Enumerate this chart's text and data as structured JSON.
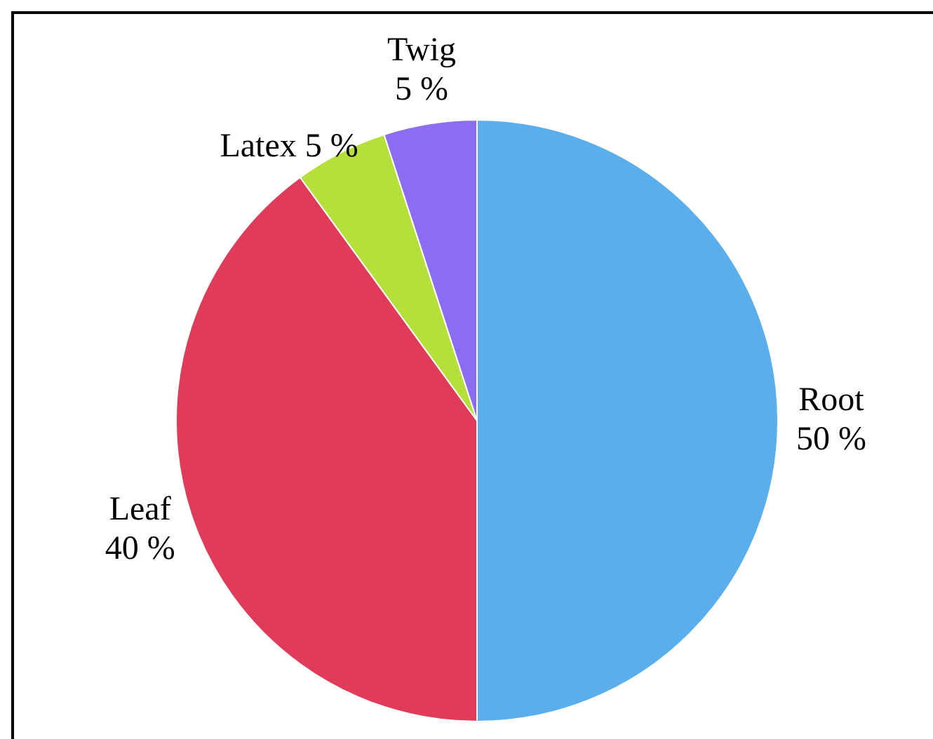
{
  "chart_data": {
    "type": "pie",
    "categories": [
      "Root",
      "Leaf",
      "Latex",
      "Twig"
    ],
    "values": [
      50,
      40,
      5,
      5
    ],
    "colors": [
      "#5aaeec",
      "#e03c5a",
      "#b5e03a",
      "#8c6cf0"
    ],
    "value_labels": [
      "50 %",
      "40 %",
      "5 %",
      "5 %"
    ],
    "legend": false
  }
}
